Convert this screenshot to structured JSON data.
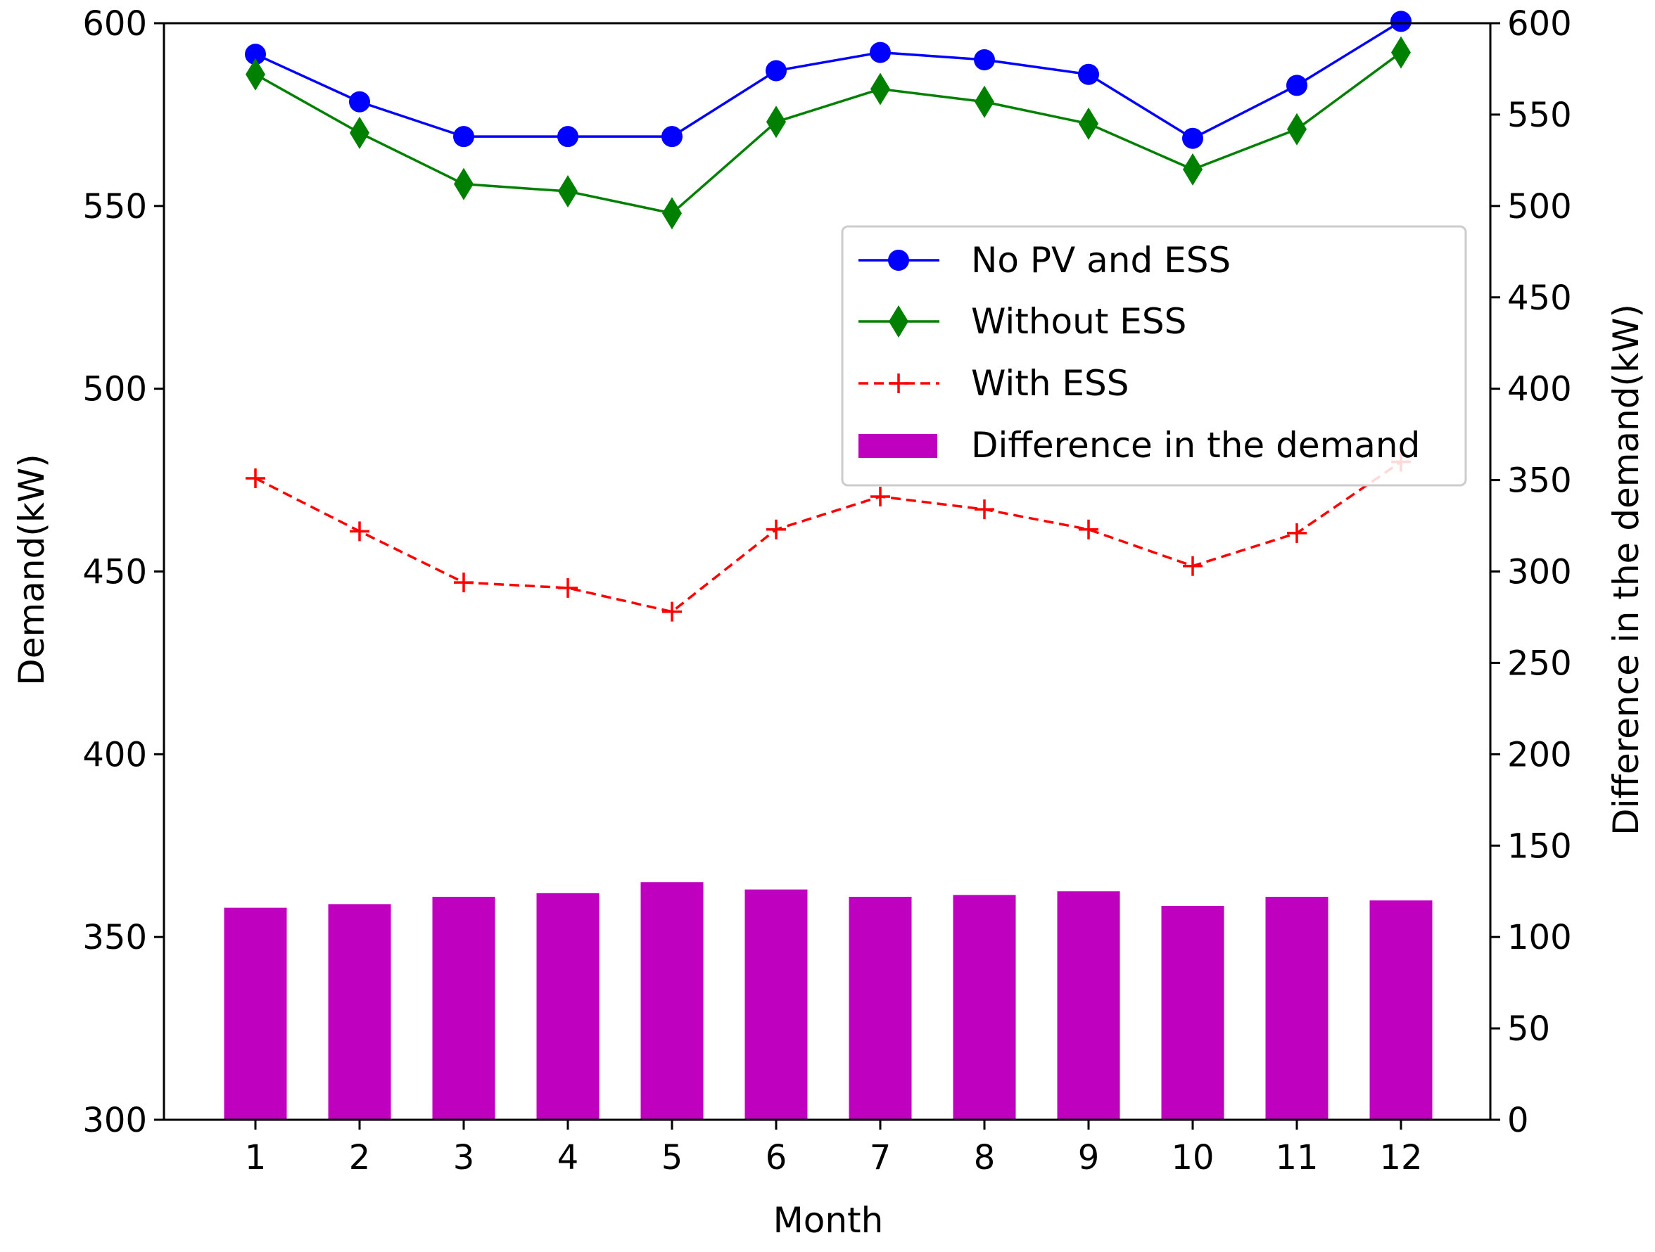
{
  "chart_data": {
    "type": "bar+line",
    "title": "",
    "xlabel": "Month",
    "ylabel_left": "Demand(kW)",
    "ylabel_right": "Difference in the demand(kW)",
    "categories": [
      "1",
      "2",
      "3",
      "4",
      "5",
      "6",
      "7",
      "8",
      "9",
      "10",
      "11",
      "12"
    ],
    "ylim_left": [
      300,
      600
    ],
    "ylim_right": [
      0,
      600
    ],
    "yticks_left": [
      "300",
      "350",
      "400",
      "450",
      "500",
      "550",
      "600"
    ],
    "yticks_right": [
      "0",
      "50",
      "100",
      "150",
      "200",
      "250",
      "300",
      "350",
      "400",
      "450",
      "500",
      "550",
      "600"
    ],
    "grid": false,
    "legend_position": "center-right",
    "series": [
      {
        "name": "No PV and ESS",
        "axis": "left",
        "kind": "line",
        "marker": "circle",
        "line_style": "solid",
        "color": "#0000ff",
        "values": [
          591.5,
          578.5,
          569,
          569,
          569,
          587,
          592,
          590,
          586,
          568.5,
          583,
          600.5
        ]
      },
      {
        "name": "Without ESS",
        "axis": "left",
        "kind": "line",
        "marker": "diamond",
        "line_style": "solid",
        "color": "#008000",
        "values": [
          586,
          570,
          556,
          554,
          548,
          573,
          582,
          578.5,
          572.5,
          560,
          571,
          592
        ]
      },
      {
        "name": "With ESS",
        "axis": "left",
        "kind": "line",
        "marker": "plus",
        "line_style": "dashed",
        "color": "#ff0000",
        "values": [
          475.5,
          461,
          447,
          445.5,
          439,
          461.5,
          470.5,
          467,
          461.5,
          451.5,
          460.5,
          480
        ]
      },
      {
        "name": "Difference in the demand",
        "axis": "right",
        "kind": "bar",
        "color": "#bf00bf",
        "values": [
          116,
          118,
          122,
          124,
          130,
          126,
          122,
          123,
          125,
          117,
          122,
          120
        ]
      }
    ]
  }
}
